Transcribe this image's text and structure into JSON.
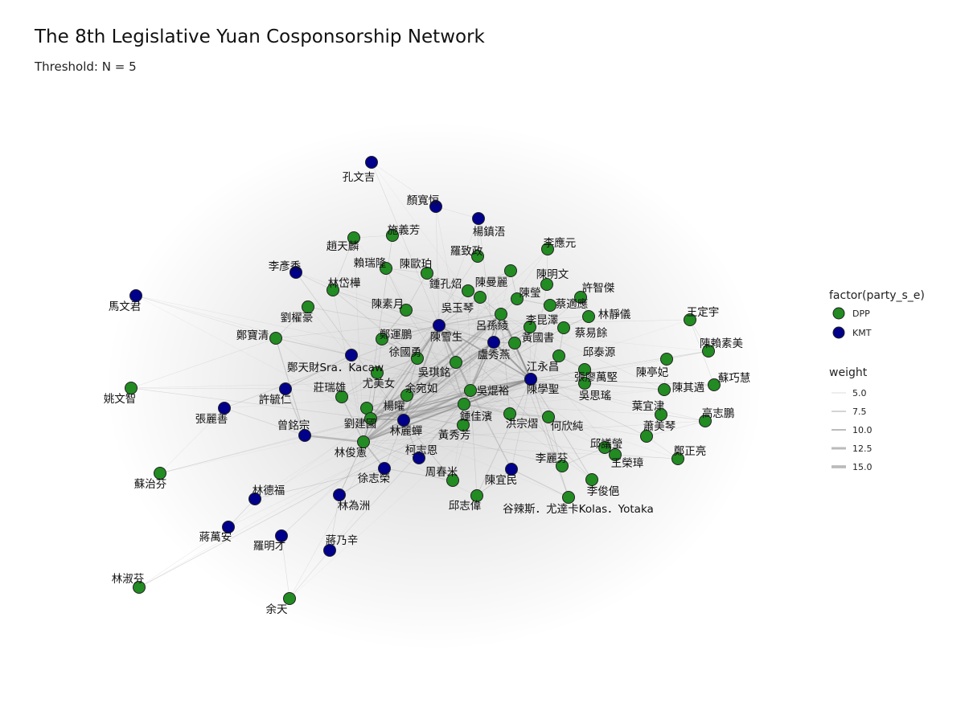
{
  "header": {
    "title": "The 8th Legislative Yuan Cosponsorship Network",
    "subtitle": "Threshold: N = 5"
  },
  "colors": {
    "DPP": "#228B22",
    "KMT": "#00008B",
    "edge": "#888888"
  },
  "legend": {
    "party_title": "factor(party_s_e)",
    "parties": [
      "DPP",
      "KMT"
    ],
    "weight_title": "weight",
    "weights": [
      "5.0",
      "7.5",
      "10.0",
      "12.5",
      "15.0"
    ]
  },
  "nodes": [
    {
      "name": "孔文吉",
      "party": "KMT"
    },
    {
      "name": "顏寬恒",
      "party": "KMT"
    },
    {
      "name": "楊鎮浯",
      "party": "KMT"
    },
    {
      "name": "施義芳",
      "party": "DPP"
    },
    {
      "name": "趙天麟",
      "party": "DPP"
    },
    {
      "name": "李應元",
      "party": "DPP"
    },
    {
      "name": "羅致政",
      "party": "DPP"
    },
    {
      "name": "李彥秀",
      "party": "KMT"
    },
    {
      "name": "賴瑞隆",
      "party": "DPP"
    },
    {
      "name": "陳歐珀",
      "party": "DPP"
    },
    {
      "name": "陳明文",
      "party": "DPP"
    },
    {
      "name": "鍾孔炤",
      "party": "DPP"
    },
    {
      "name": "陳曼麗",
      "party": "DPP"
    },
    {
      "name": "林岱樺",
      "party": "DPP"
    },
    {
      "name": "許智傑",
      "party": "DPP"
    },
    {
      "name": "陳瑩",
      "party": "DPP"
    },
    {
      "name": "馬文君",
      "party": "KMT"
    },
    {
      "name": "蔡適應",
      "party": "DPP"
    },
    {
      "name": "陳素月",
      "party": "DPP"
    },
    {
      "name": "吳玉琴",
      "party": "DPP"
    },
    {
      "name": "林靜儀",
      "party": "DPP"
    },
    {
      "name": "王定宇",
      "party": "DPP"
    },
    {
      "name": "劉櫂豪",
      "party": "DPP"
    },
    {
      "name": "李昆澤",
      "party": "DPP"
    },
    {
      "name": "呂孫綾",
      "party": "DPP"
    },
    {
      "name": "鄭寶清",
      "party": "DPP"
    },
    {
      "name": "鄭運鵬",
      "party": "DPP"
    },
    {
      "name": "蔡易餘",
      "party": "DPP"
    },
    {
      "name": "陳雪生",
      "party": "KMT"
    },
    {
      "name": "黃國書",
      "party": "DPP"
    },
    {
      "name": "陳賴素美",
      "party": "DPP"
    },
    {
      "name": "徐國勇",
      "party": "DPP"
    },
    {
      "name": "盧秀燕",
      "party": "KMT"
    },
    {
      "name": "邱泰源",
      "party": "DPP"
    },
    {
      "name": "鄭天財Sra．Kacaw",
      "party": "KMT"
    },
    {
      "name": "江永昌",
      "party": "DPP"
    },
    {
      "name": "陳亭妃",
      "party": "DPP"
    },
    {
      "name": "吳琪銘",
      "party": "DPP"
    },
    {
      "name": "張廖萬堅",
      "party": "DPP"
    },
    {
      "name": "蘇巧慧",
      "party": "DPP"
    },
    {
      "name": "尤美女",
      "party": "DPP"
    },
    {
      "name": "陳學聖",
      "party": "KMT"
    },
    {
      "name": "莊瑞雄",
      "party": "DPP"
    },
    {
      "name": "余宛如",
      "party": "DPP"
    },
    {
      "name": "吳焜裕",
      "party": "DPP"
    },
    {
      "name": "陳其邁",
      "party": "DPP"
    },
    {
      "name": "姚文智",
      "party": "DPP"
    },
    {
      "name": "吳思瑤",
      "party": "DPP"
    },
    {
      "name": "許毓仁",
      "party": "KMT"
    },
    {
      "name": "葉宜津",
      "party": "DPP"
    },
    {
      "name": "楊曜",
      "party": "DPP"
    },
    {
      "name": "張麗善",
      "party": "KMT"
    },
    {
      "name": "鍾佳濱",
      "party": "DPP"
    },
    {
      "name": "高志鵬",
      "party": "DPP"
    },
    {
      "name": "劉建國",
      "party": "DPP"
    },
    {
      "name": "洪宗熠",
      "party": "DPP"
    },
    {
      "name": "曾銘宗",
      "party": "KMT"
    },
    {
      "name": "林麗蟬",
      "party": "KMT"
    },
    {
      "name": "何欣純",
      "party": "DPP"
    },
    {
      "name": "蕭美琴",
      "party": "DPP"
    },
    {
      "name": "黃秀芳",
      "party": "DPP"
    },
    {
      "name": "邱議瑩",
      "party": "DPP"
    },
    {
      "name": "林俊憲",
      "party": "DPP"
    },
    {
      "name": "柯志恩",
      "party": "KMT"
    },
    {
      "name": "鄭正亮",
      "party": "DPP"
    },
    {
      "name": "王榮璋",
      "party": "DPP"
    },
    {
      "name": "李麗芬",
      "party": "DPP"
    },
    {
      "name": "徐志榮",
      "party": "KMT"
    },
    {
      "name": "周春米",
      "party": "DPP"
    },
    {
      "name": "蘇治芬",
      "party": "DPP"
    },
    {
      "name": "陳宜民",
      "party": "KMT"
    },
    {
      "name": "李俊俋",
      "party": "DPP"
    },
    {
      "name": "林德福",
      "party": "KMT"
    },
    {
      "name": "林為洲",
      "party": "KMT"
    },
    {
      "name": "邱志偉",
      "party": "DPP"
    },
    {
      "name": "谷辣斯．尤達卡Kolas．Yotaka",
      "party": "DPP"
    },
    {
      "name": "蔣萬安",
      "party": "KMT"
    },
    {
      "name": "羅明才",
      "party": "KMT"
    },
    {
      "name": "蔣乃辛",
      "party": "KMT"
    },
    {
      "name": "林淑芬",
      "party": "DPP"
    },
    {
      "name": "余天",
      "party": "DPP"
    }
  ]
}
